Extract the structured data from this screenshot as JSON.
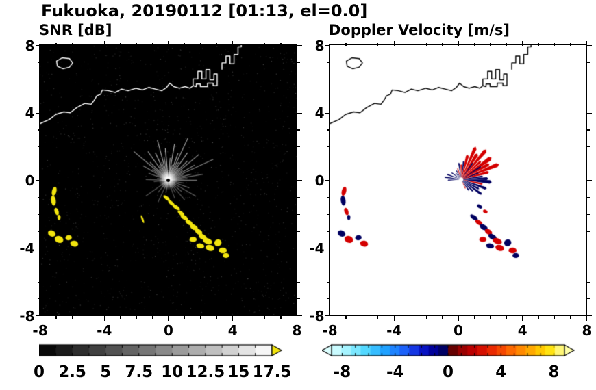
{
  "chart_data": {
    "type": "heatmap",
    "title": "Fukuoka, 20190112 [01:13, el=0.0]",
    "site": "Fukuoka",
    "date": "20190112",
    "time": "01:13",
    "elevation": "0.0",
    "axis": {
      "xlim": [
        -8,
        8
      ],
      "ylim": [
        -8,
        8
      ],
      "major_ticks": [
        -8,
        -4,
        0,
        4,
        8
      ],
      "major_tick_labels": [
        "-8",
        "-4",
        "0",
        "4",
        "8"
      ],
      "minor_tick_step": 1
    },
    "panels": [
      {
        "key": "snr",
        "title": "SNR [dB]",
        "background": "#000000",
        "coast_color": "#ffffff",
        "colorbar": {
          "min": 0,
          "max": 17.5,
          "ticks": [
            0,
            2.5,
            5,
            7.5,
            10,
            12.5,
            15,
            17.5
          ],
          "tick_labels": [
            "0",
            "2.5",
            "5",
            "7.5",
            "10",
            "12.5",
            "15",
            "17.5"
          ],
          "stops": [
            [
              0,
              "#000000"
            ],
            [
              1,
              "#ffffff"
            ]
          ],
          "segments": 14,
          "minor_tick_step": 1.25,
          "left_arrow": null,
          "right_arrow": "#f2e40e"
        }
      },
      {
        "key": "velocity",
        "title": "Doppler Velocity [m/s]",
        "background": "#ffffff",
        "coast_color": "#000000",
        "colorbar": {
          "min": -8.8,
          "max": 8.8,
          "ticks": [
            -8,
            -4,
            0,
            4,
            8
          ],
          "tick_labels": [
            "-8",
            "-4",
            "0",
            "4",
            "8"
          ],
          "stops": [
            [
              0,
              "#dcffff"
            ],
            [
              0.06,
              "#a8f4ff"
            ],
            [
              0.14,
              "#57dcff"
            ],
            [
              0.22,
              "#1fa8ff"
            ],
            [
              0.3,
              "#1e6eff"
            ],
            [
              0.36,
              "#1430e0"
            ],
            [
              0.42,
              "#0000b0"
            ],
            [
              0.47,
              "#000070"
            ],
            [
              0.499,
              "#00004a"
            ],
            [
              0.501,
              "#4a0000"
            ],
            [
              0.55,
              "#900000"
            ],
            [
              0.62,
              "#c80000"
            ],
            [
              0.7,
              "#f03000"
            ],
            [
              0.78,
              "#ff7000"
            ],
            [
              0.86,
              "#ffae00"
            ],
            [
              0.93,
              "#ffe000"
            ],
            [
              1,
              "#ffffa8"
            ]
          ],
          "segments": 24,
          "minor_tick_step": 1,
          "left_arrow": "#dcffff",
          "right_arrow": "#ffffa8"
        }
      }
    ],
    "colors": {
      "echo_yellow": "#f2e40e",
      "vel_red": "#d40000",
      "vel_navy": "#000060"
    },
    "noise": {
      "count": 1300,
      "seed": 987654321
    },
    "coastline": [
      [
        [
          -8,
          3.35
        ],
        [
          -7.4,
          3.6
        ],
        [
          -7.0,
          3.9
        ],
        [
          -6.5,
          4.05
        ],
        [
          -6.1,
          4.0
        ],
        [
          -5.7,
          4.3
        ],
        [
          -5.2,
          4.55
        ],
        [
          -4.8,
          4.5
        ],
        [
          -4.6,
          4.75
        ],
        [
          -4.45,
          5.0
        ],
        [
          -4.2,
          5.1
        ],
        [
          -4.1,
          5.35
        ],
        [
          -3.7,
          5.3
        ],
        [
          -3.3,
          5.2
        ],
        [
          -2.9,
          5.4
        ],
        [
          -2.5,
          5.3
        ],
        [
          -2.0,
          5.45
        ],
        [
          -1.6,
          5.35
        ],
        [
          -1.2,
          5.5
        ],
        [
          -0.8,
          5.4
        ],
        [
          -0.4,
          5.3
        ],
        [
          -0.1,
          5.5
        ],
        [
          0.1,
          5.75
        ],
        [
          0.35,
          5.55
        ],
        [
          0.7,
          5.45
        ],
        [
          1.05,
          5.55
        ],
        [
          1.35,
          5.45
        ],
        [
          1.55,
          5.6
        ]
      ],
      [
        [
          1.55,
          5.6
        ],
        [
          1.55,
          6.0
        ],
        [
          1.85,
          6.0
        ],
        [
          1.85,
          6.45
        ],
        [
          2.1,
          6.45
        ],
        [
          2.1,
          6.0
        ],
        [
          2.35,
          6.0
        ],
        [
          2.35,
          6.55
        ],
        [
          2.6,
          6.55
        ],
        [
          2.6,
          5.95
        ],
        [
          2.85,
          5.95
        ],
        [
          2.85,
          6.3
        ],
        [
          3.05,
          6.3
        ],
        [
          3.05,
          5.6
        ],
        [
          2.8,
          5.6
        ],
        [
          2.8,
          5.75
        ],
        [
          2.45,
          5.75
        ],
        [
          2.45,
          5.55
        ],
        [
          2.0,
          5.55
        ],
        [
          2.0,
          5.7
        ],
        [
          1.75,
          5.7
        ],
        [
          1.75,
          5.55
        ],
        [
          1.55,
          5.6
        ]
      ],
      [
        [
          3.35,
          6.55
        ],
        [
          3.35,
          6.95
        ],
        [
          3.6,
          6.95
        ],
        [
          3.6,
          7.35
        ],
        [
          3.85,
          7.35
        ],
        [
          3.85,
          6.9
        ],
        [
          4.1,
          6.9
        ],
        [
          4.1,
          7.45
        ],
        [
          4.35,
          7.45
        ],
        [
          4.35,
          7.9
        ],
        [
          4.55,
          7.9
        ],
        [
          4.55,
          8.0
        ]
      ],
      [
        [
          -6.55,
          6.6
        ],
        [
          -6.9,
          6.75
        ],
        [
          -6.95,
          7.05
        ],
        [
          -6.6,
          7.25
        ],
        [
          -6.15,
          7.2
        ],
        [
          -5.95,
          6.95
        ],
        [
          -6.15,
          6.7
        ],
        [
          -6.55,
          6.6
        ]
      ]
    ],
    "snr_rays": [
      [
        95,
        2.0,
        0.7
      ],
      [
        100,
        1.5,
        0.5
      ],
      [
        105,
        2.6,
        0.6
      ],
      [
        110,
        1.2,
        0.5
      ],
      [
        115,
        1.9,
        0.6
      ],
      [
        120,
        1.1,
        0.45
      ],
      [
        125,
        2.2,
        0.55
      ],
      [
        130,
        0.9,
        0.4
      ],
      [
        135,
        1.6,
        0.5
      ],
      [
        140,
        2.8,
        0.5
      ],
      [
        145,
        1.2,
        0.4
      ],
      [
        150,
        1.8,
        0.45
      ],
      [
        155,
        0.8,
        0.35
      ],
      [
        160,
        1.3,
        0.4
      ],
      [
        170,
        0.7,
        0.35
      ],
      [
        85,
        1.4,
        0.6
      ],
      [
        80,
        2.3,
        0.65
      ],
      [
        75,
        1.0,
        0.5
      ],
      [
        70,
        1.8,
        0.6
      ],
      [
        65,
        2.9,
        0.55
      ],
      [
        60,
        1.3,
        0.5
      ],
      [
        55,
        2.1,
        0.6
      ],
      [
        50,
        1.0,
        0.45
      ],
      [
        45,
        1.7,
        0.55
      ],
      [
        40,
        2.5,
        0.5
      ],
      [
        35,
        1.1,
        0.45
      ],
      [
        30,
        1.9,
        0.5
      ],
      [
        25,
        3.1,
        0.45
      ],
      [
        20,
        1.0,
        0.4
      ],
      [
        15,
        1.5,
        0.45
      ],
      [
        10,
        2.2,
        0.4
      ],
      [
        5,
        1.2,
        0.4
      ],
      [
        0,
        1.8,
        0.45
      ],
      [
        -10,
        1.0,
        0.35
      ],
      [
        -20,
        1.4,
        0.4
      ],
      [
        -30,
        2.0,
        0.35
      ],
      [
        -40,
        1.1,
        0.35
      ],
      [
        -50,
        1.6,
        0.3
      ],
      [
        -60,
        0.9,
        0.3
      ],
      [
        -70,
        1.2,
        0.3
      ],
      [
        -100,
        0.8,
        0.3
      ],
      [
        -115,
        1.5,
        0.3
      ],
      [
        -130,
        1.0,
        0.3
      ],
      [
        -145,
        1.7,
        0.3
      ],
      [
        185,
        0.9,
        0.3
      ],
      [
        178,
        1.4,
        0.35
      ]
    ],
    "snr_echoes": [
      [
        -7.1,
        -0.65,
        0.28,
        0.55,
        -15
      ],
      [
        -7.15,
        -1.2,
        0.3,
        0.6,
        8
      ],
      [
        -6.95,
        -1.85,
        0.25,
        0.45,
        18
      ],
      [
        -6.8,
        -2.2,
        0.2,
        0.3,
        0
      ],
      [
        -7.25,
        -3.15,
        0.5,
        0.35,
        -25
      ],
      [
        -6.8,
        -3.5,
        0.55,
        0.4,
        -18
      ],
      [
        -6.2,
        -3.4,
        0.4,
        0.3,
        10
      ],
      [
        -5.85,
        -3.75,
        0.5,
        0.35,
        -12
      ],
      [
        -1.6,
        -2.3,
        0.12,
        0.5,
        20
      ],
      [
        -0.1,
        -1.05,
        0.5,
        0.2,
        -40
      ],
      [
        0.2,
        -1.35,
        0.5,
        0.2,
        -40
      ],
      [
        0.5,
        -1.6,
        0.55,
        0.22,
        -35
      ],
      [
        0.8,
        -1.95,
        0.5,
        0.22,
        -38
      ],
      [
        1.0,
        -2.2,
        0.55,
        0.25,
        -35
      ],
      [
        1.3,
        -2.5,
        0.5,
        0.25,
        -30
      ],
      [
        1.6,
        -2.78,
        0.55,
        0.3,
        -30
      ],
      [
        1.9,
        -3.05,
        0.5,
        0.3,
        -32
      ],
      [
        2.15,
        -3.35,
        0.55,
        0.3,
        -28
      ],
      [
        2.45,
        -3.6,
        0.6,
        0.33,
        -20
      ],
      [
        1.55,
        -3.5,
        0.45,
        0.3,
        0
      ],
      [
        2.0,
        -3.88,
        0.5,
        0.3,
        -10
      ],
      [
        2.6,
        -4.0,
        0.55,
        0.35,
        -15
      ],
      [
        3.1,
        -3.7,
        0.45,
        0.4,
        20
      ],
      [
        3.4,
        -4.15,
        0.5,
        0.35,
        0
      ],
      [
        3.6,
        -4.45,
        0.4,
        0.3,
        0
      ]
    ],
    "vel_fan_center": [
      0.2,
      0.05
    ],
    "vel_fan": [
      [
        75,
        1.5,
        7,
        "r"
      ],
      [
        66,
        2.1,
        6,
        "r"
      ],
      [
        58,
        1.8,
        7,
        "r"
      ],
      [
        50,
        2.3,
        6,
        "r"
      ],
      [
        43,
        1.6,
        5,
        "r"
      ],
      [
        36,
        2.2,
        7,
        "r"
      ],
      [
        29,
        1.9,
        6,
        "r"
      ],
      [
        22,
        2.4,
        6,
        "r"
      ],
      [
        15,
        1.7,
        6,
        "r"
      ],
      [
        8,
        1.3,
        5,
        "n"
      ],
      [
        2,
        1.6,
        6,
        "n"
      ],
      [
        -5,
        1.8,
        7,
        "n"
      ],
      [
        -12,
        1.3,
        5,
        "r"
      ],
      [
        -20,
        1.6,
        6,
        "n"
      ],
      [
        -28,
        1.2,
        6,
        "n"
      ],
      [
        -36,
        1.5,
        6,
        "n"
      ],
      [
        -45,
        1.0,
        6,
        "n"
      ],
      [
        -55,
        0.8,
        6,
        "n"
      ],
      [
        82,
        1.1,
        5,
        "n"
      ],
      [
        90,
        0.9,
        5,
        "r"
      ],
      [
        98,
        1.0,
        5,
        "n"
      ],
      [
        108,
        0.7,
        5,
        "r"
      ],
      [
        118,
        0.6,
        5,
        "n"
      ],
      [
        130,
        0.5,
        5,
        "n"
      ],
      [
        145,
        0.7,
        5,
        "n"
      ],
      [
        160,
        0.9,
        5,
        "n"
      ],
      [
        172,
        1.0,
        5,
        "n"
      ],
      [
        183,
        0.8,
        5,
        "n"
      ],
      [
        -65,
        0.6,
        5,
        "r"
      ],
      [
        55,
        1.2,
        4,
        "n"
      ],
      [
        33,
        1.4,
        4,
        "n"
      ],
      [
        20,
        1.1,
        4,
        "n"
      ]
    ],
    "vel_echoes": [
      [
        -7.1,
        -0.65,
        0.28,
        0.55,
        -15,
        "r"
      ],
      [
        -7.15,
        -1.2,
        0.3,
        0.6,
        8,
        "n"
      ],
      [
        -6.95,
        -1.85,
        0.25,
        0.45,
        18,
        "r"
      ],
      [
        -6.8,
        -2.2,
        0.2,
        0.3,
        0,
        "n"
      ],
      [
        -7.25,
        -3.15,
        0.5,
        0.35,
        -25,
        "n"
      ],
      [
        -6.8,
        -3.5,
        0.55,
        0.4,
        -18,
        "r"
      ],
      [
        -6.2,
        -3.4,
        0.4,
        0.3,
        10,
        "n"
      ],
      [
        -5.85,
        -3.75,
        0.5,
        0.35,
        -12,
        "r"
      ],
      [
        1.35,
        -1.55,
        0.35,
        0.2,
        -30,
        "n"
      ],
      [
        1.7,
        -1.85,
        0.3,
        0.2,
        -30,
        "r"
      ],
      [
        1.0,
        -2.2,
        0.55,
        0.25,
        -35,
        "n"
      ],
      [
        1.3,
        -2.5,
        0.5,
        0.25,
        -30,
        "r"
      ],
      [
        1.6,
        -2.78,
        0.55,
        0.3,
        -30,
        "n"
      ],
      [
        1.9,
        -3.05,
        0.5,
        0.3,
        -32,
        "r"
      ],
      [
        2.15,
        -3.35,
        0.55,
        0.3,
        -28,
        "n"
      ],
      [
        2.45,
        -3.6,
        0.6,
        0.33,
        -20,
        "r"
      ],
      [
        1.55,
        -3.5,
        0.45,
        0.3,
        0,
        "r"
      ],
      [
        2.0,
        -3.88,
        0.5,
        0.3,
        -10,
        "n"
      ],
      [
        2.6,
        -4.0,
        0.55,
        0.35,
        -15,
        "r"
      ],
      [
        3.1,
        -3.7,
        0.45,
        0.4,
        20,
        "n"
      ],
      [
        3.4,
        -4.15,
        0.5,
        0.35,
        0,
        "r"
      ],
      [
        3.6,
        -4.45,
        0.4,
        0.3,
        0,
        "n"
      ]
    ]
  }
}
